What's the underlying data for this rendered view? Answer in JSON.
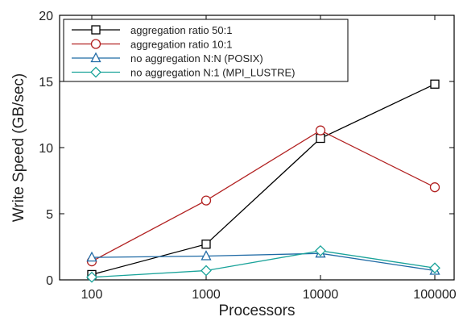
{
  "chart_data": {
    "type": "line",
    "title": "",
    "xlabel": "Processors",
    "ylabel": "Write Speed (GB/sec)",
    "x_scale": "log",
    "x": [
      100,
      1000,
      10000,
      100000
    ],
    "xticks": [
      "100",
      "1000",
      "10000",
      "100000"
    ],
    "ylim": [
      0,
      20
    ],
    "yticks": [
      "0",
      "5",
      "10",
      "15",
      "20"
    ],
    "grid": false,
    "legend_position": "top-left",
    "series": [
      {
        "name": "aggregation ratio 50:1",
        "values": [
          0.4,
          2.7,
          10.7,
          14.8
        ],
        "color": "#000000",
        "marker": "square"
      },
      {
        "name": "aggregation ratio 10:1",
        "values": [
          1.4,
          6.0,
          11.3,
          7.0
        ],
        "color": "#b22222",
        "marker": "circle"
      },
      {
        "name": "no aggregation N:N (POSIX)",
        "values": [
          1.7,
          1.8,
          2.0,
          0.7
        ],
        "color": "#1f6aa5",
        "marker": "triangle"
      },
      {
        "name": "no aggregation N:1 (MPI_LUSTRE)",
        "values": [
          0.2,
          0.7,
          2.2,
          0.9
        ],
        "color": "#1aa39a",
        "marker": "diamond"
      }
    ]
  }
}
